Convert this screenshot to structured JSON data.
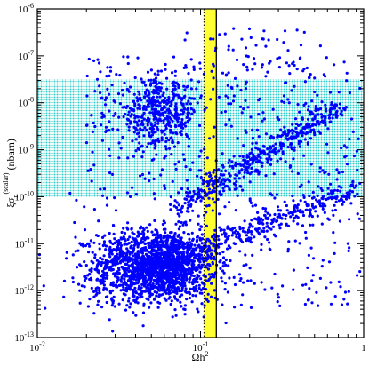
{
  "chart_data": {
    "type": "scatter",
    "title": "",
    "xlabel": {
      "main": "Ωh",
      "sup": "2"
    },
    "ylabel": {
      "main": "ξσ",
      "sub": "n",
      "sup": "(scalar)",
      "unit": "(nbarn)"
    },
    "xscale": "log",
    "yscale": "log",
    "xlim": [
      0.01,
      1
    ],
    "ylim": [
      1e-13,
      1e-06
    ],
    "x_ticks": [
      {
        "value": 0.01,
        "base": "10",
        "exp": "-2"
      },
      {
        "value": 0.1,
        "base": "10",
        "exp": "-1"
      },
      {
        "value": 1,
        "base": "1",
        "exp": ""
      }
    ],
    "y_ticks": [
      {
        "value": 1e-13,
        "base": "10",
        "exp": "-13"
      },
      {
        "value": 1e-12,
        "base": "10",
        "exp": "-12"
      },
      {
        "value": 1e-11,
        "base": "10",
        "exp": "-11"
      },
      {
        "value": 1e-10,
        "base": "10",
        "exp": "-10"
      },
      {
        "value": 1e-09,
        "base": "10",
        "exp": "-9"
      },
      {
        "value": 1e-08,
        "base": "10",
        "exp": "-8"
      },
      {
        "value": 1e-07,
        "base": "10",
        "exp": "-7"
      },
      {
        "value": 1e-06,
        "base": "10",
        "exp": "-6"
      }
    ],
    "grid": false,
    "legend": "none",
    "bands": [
      {
        "orientation": "horizontal",
        "from": 1e-10,
        "to": 3.2e-08,
        "color": "#33cccc",
        "pattern": "dotted"
      },
      {
        "orientation": "vertical",
        "from": 0.105,
        "to": 0.125,
        "color": "#ffff33"
      }
    ],
    "vlines": [
      {
        "x": 0.105,
        "style": "dotted",
        "color": "#000000"
      },
      {
        "x": 0.125,
        "style": "solid",
        "color": "#000000"
      }
    ],
    "series": [
      {
        "marker_color": "#0000ff",
        "clusters": [
          {
            "kind": "blob",
            "center": [
              0.055,
              4e-12
            ],
            "spread": [
              0.18,
              0.35
            ],
            "n": 1400
          },
          {
            "kind": "blob",
            "center": [
              0.05,
              1.5e-12
            ],
            "spread": [
              0.22,
              0.3
            ],
            "n": 350
          },
          {
            "kind": "band",
            "x_range": [
              0.05,
              0.9
            ],
            "y_range": [
              3e-12,
              1.6e-10
            ],
            "scatter": 0.1,
            "n": 380
          },
          {
            "kind": "band",
            "x_range": [
              0.07,
              0.7
            ],
            "y_range": [
              5e-11,
              8e-09
            ],
            "scatter": 0.1,
            "n": 420
          },
          {
            "kind": "blob",
            "center": [
              0.055,
              6e-09
            ],
            "spread": [
              0.12,
              0.35
            ],
            "n": 420
          },
          {
            "kind": "uniform",
            "x_range": [
              0.02,
              0.95
            ],
            "y_range": [
              2e-10,
              1e-07
            ],
            "n": 320
          },
          {
            "kind": "uniform",
            "x_range": [
              0.08,
              0.6
            ],
            "y_range": [
              1e-08,
              4e-07
            ],
            "n": 70
          },
          {
            "kind": "uniform",
            "x_range": [
              0.015,
              0.95
            ],
            "y_range": [
              4e-13,
              2e-10
            ],
            "n": 240
          }
        ]
      }
    ]
  }
}
